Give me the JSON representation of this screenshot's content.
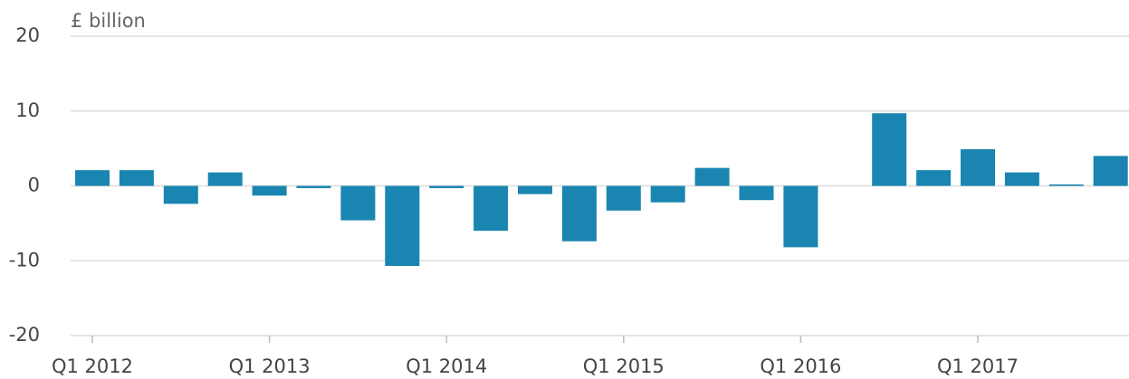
{
  "chart_data": {
    "type": "bar",
    "y_label": "£ billion",
    "categories": [
      "Q1 2012",
      null,
      null,
      null,
      "Q1 2013",
      null,
      null,
      null,
      "Q1 2014",
      null,
      null,
      null,
      "Q1 2015",
      null,
      null,
      null,
      "Q1 2016",
      null,
      null,
      null,
      "Q1 2017",
      null,
      null,
      null
    ],
    "values": [
      2.1,
      2.1,
      -2.4,
      1.8,
      -1.3,
      -0.3,
      -4.6,
      -10.7,
      -0.3,
      -6.0,
      -1.1,
      -7.4,
      -3.3,
      -2.2,
      2.4,
      -1.9,
      -8.2,
      0,
      9.7,
      2.1,
      4.9,
      1.8,
      0.2,
      4.0
    ],
    "color": "#1a85b0",
    "ylim": [
      -20,
      20
    ],
    "yticks": [
      -20,
      -10,
      0,
      10,
      20
    ],
    "grid": true
  }
}
